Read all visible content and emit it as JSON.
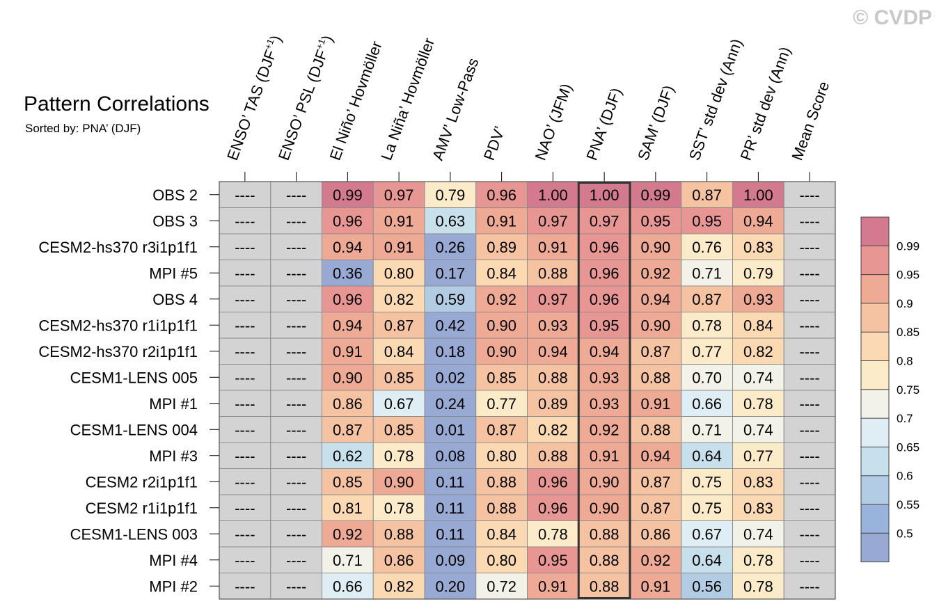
{
  "watermark": "© CVDP",
  "chart_data": {
    "type": "heatmap",
    "title": "Pattern Correlations",
    "subtitle": "Sorted by: PNA’ (DJF)",
    "columns": [
      {
        "name": "ENSO’ TAS (DJF",
        "sup": "+1",
        "close": ")"
      },
      {
        "name": "ENSO’ PSL (DJF",
        "sup": "+1",
        "close": ")"
      },
      {
        "name": "El Niño’ Hovmöller"
      },
      {
        "name": "La Niña’ Hovmöller"
      },
      {
        "name": "AMV’ Low-Pass"
      },
      {
        "name": "PDV’"
      },
      {
        "name": "NAO’ (JFM)"
      },
      {
        "name": "PNA’ (DJF)"
      },
      {
        "name": "SAM’ (DJF)"
      },
      {
        "name": "SST’ std dev (Ann)"
      },
      {
        "name": "PR’ std dev (Ann)"
      },
      {
        "name": "Mean Score"
      }
    ],
    "highlight_column": "PNA’ (DJF)",
    "missing_text": "----",
    "rows": [
      {
        "name": "OBS 2",
        "values": [
          null,
          null,
          0.99,
          0.97,
          0.79,
          0.96,
          1.0,
          1.0,
          0.99,
          0.87,
          1.0,
          null
        ]
      },
      {
        "name": "OBS 3",
        "values": [
          null,
          null,
          0.96,
          0.91,
          0.63,
          0.91,
          0.97,
          0.97,
          0.95,
          0.95,
          0.94,
          null
        ]
      },
      {
        "name": "CESM2-hs370 r3i1p1f1",
        "values": [
          null,
          null,
          0.94,
          0.91,
          0.26,
          0.89,
          0.91,
          0.96,
          0.9,
          0.76,
          0.83,
          null
        ]
      },
      {
        "name": "MPI #5",
        "values": [
          null,
          null,
          0.36,
          0.8,
          0.17,
          0.84,
          0.88,
          0.96,
          0.92,
          0.71,
          0.79,
          null
        ]
      },
      {
        "name": "OBS 4",
        "values": [
          null,
          null,
          0.96,
          0.82,
          0.59,
          0.92,
          0.97,
          0.96,
          0.94,
          0.87,
          0.93,
          null
        ]
      },
      {
        "name": "CESM2-hs370 r1i1p1f1",
        "values": [
          null,
          null,
          0.94,
          0.87,
          0.42,
          0.9,
          0.93,
          0.95,
          0.9,
          0.78,
          0.84,
          null
        ]
      },
      {
        "name": "CESM2-hs370 r2i1p1f1",
        "values": [
          null,
          null,
          0.91,
          0.84,
          0.18,
          0.9,
          0.94,
          0.94,
          0.87,
          0.77,
          0.82,
          null
        ]
      },
      {
        "name": "CESM1-LENS 005",
        "values": [
          null,
          null,
          0.9,
          0.85,
          0.02,
          0.85,
          0.88,
          0.93,
          0.88,
          0.7,
          0.74,
          null
        ]
      },
      {
        "name": "MPI #1",
        "values": [
          null,
          null,
          0.86,
          0.67,
          0.24,
          0.77,
          0.89,
          0.93,
          0.91,
          0.66,
          0.78,
          null
        ]
      },
      {
        "name": "CESM1-LENS 004",
        "values": [
          null,
          null,
          0.87,
          0.85,
          0.01,
          0.87,
          0.82,
          0.92,
          0.88,
          0.71,
          0.74,
          null
        ]
      },
      {
        "name": "MPI #3",
        "values": [
          null,
          null,
          0.62,
          0.78,
          0.08,
          0.8,
          0.88,
          0.91,
          0.94,
          0.64,
          0.77,
          null
        ]
      },
      {
        "name": "CESM2 r2i1p1f1",
        "values": [
          null,
          null,
          0.85,
          0.9,
          0.11,
          0.88,
          0.96,
          0.9,
          0.87,
          0.75,
          0.83,
          null
        ]
      },
      {
        "name": "CESM2 r1i1p1f1",
        "values": [
          null,
          null,
          0.81,
          0.78,
          0.11,
          0.88,
          0.96,
          0.9,
          0.87,
          0.75,
          0.83,
          null
        ]
      },
      {
        "name": "CESM1-LENS 003",
        "values": [
          null,
          null,
          0.92,
          0.88,
          0.11,
          0.84,
          0.78,
          0.88,
          0.86,
          0.67,
          0.74,
          null
        ]
      },
      {
        "name": "MPI #4",
        "values": [
          null,
          null,
          0.71,
          0.86,
          0.09,
          0.8,
          0.95,
          0.88,
          0.92,
          0.64,
          0.78,
          null
        ]
      },
      {
        "name": "MPI #2",
        "values": [
          null,
          null,
          0.66,
          0.82,
          0.2,
          0.72,
          0.91,
          0.88,
          0.91,
          0.56,
          0.78,
          null
        ]
      }
    ],
    "colorbar": {
      "levels": [
        "0.99",
        "0.95",
        "0.9",
        "0.85",
        "0.8",
        "0.75",
        "0.7",
        "0.65",
        "0.6",
        "0.55",
        "0.5"
      ],
      "colors_top_to_bottom": [
        "#d47a8f",
        "#e79694",
        "#efaa96",
        "#f6c3a2",
        "#fad9b3",
        "#fcebc8",
        "#f3f2e8",
        "#dfeef4",
        "#c8e0ec",
        "#b2cce3",
        "#9ab3dc",
        "#98a9d4"
      ]
    },
    "missing_color": "#d3d3d3",
    "grid_color": "#8c8c8c",
    "highlight_color": "#333333"
  }
}
